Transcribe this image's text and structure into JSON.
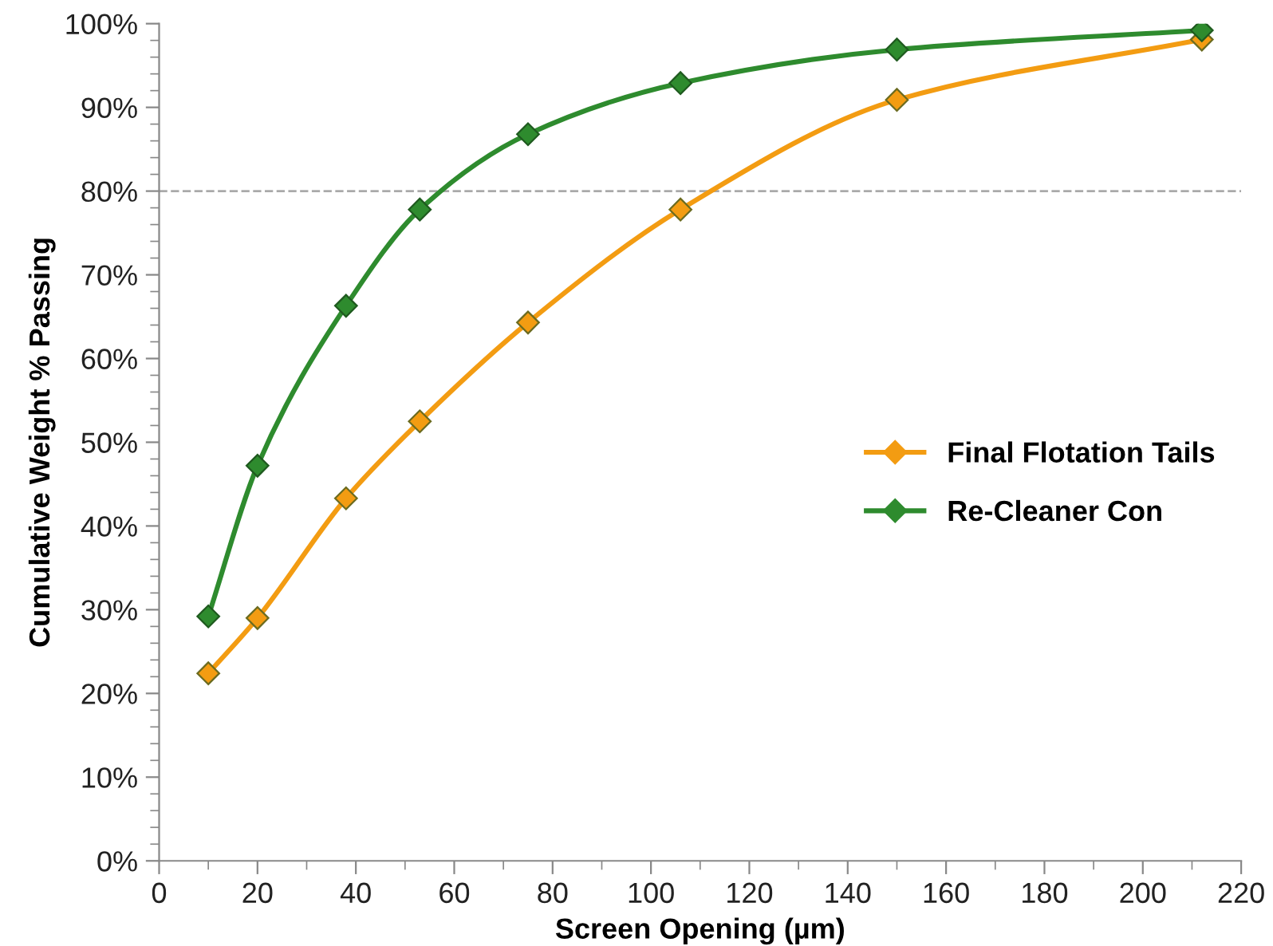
{
  "chart_data": {
    "type": "line",
    "xlabel": "Screen Opening (µm)",
    "ylabel": "Cumulative Weight % Passing",
    "series": [
      {
        "name": "Final Flotation Tails",
        "color": "#f39c12",
        "x": [
          10,
          20,
          38,
          53,
          75,
          106,
          150,
          212
        ],
        "values": [
          22.4,
          29.0,
          43.3,
          52.5,
          64.3,
          77.8,
          90.9,
          98.1
        ]
      },
      {
        "name": "Re-Cleaner Con",
        "color": "#2e8b2e",
        "x": [
          10,
          20,
          38,
          53,
          75,
          106,
          150,
          212
        ],
        "values": [
          29.2,
          47.2,
          66.3,
          77.8,
          86.8,
          92.9,
          96.9,
          99.2
        ]
      }
    ],
    "xlim": [
      0,
      220
    ],
    "xticks": [
      0,
      20,
      40,
      60,
      80,
      100,
      120,
      140,
      160,
      180,
      200,
      220
    ],
    "ylim": [
      0,
      100
    ],
    "yticks": [
      {
        "value": 0,
        "label": "0%"
      },
      {
        "value": 10,
        "label": "10%"
      },
      {
        "value": 20,
        "label": "20%"
      },
      {
        "value": 30,
        "label": "30%"
      },
      {
        "value": 40,
        "label": "40%"
      },
      {
        "value": 50,
        "label": "50%"
      },
      {
        "value": 60,
        "label": "60%"
      },
      {
        "value": 70,
        "label": "70%"
      },
      {
        "value": 80,
        "label": "80%"
      },
      {
        "value": 90,
        "label": "90%"
      },
      {
        "value": 100,
        "label": "100%"
      }
    ],
    "ref_lines": [
      {
        "axis": "y",
        "value": 80,
        "color": "#aaaaaa",
        "line_style": "dashed"
      }
    ],
    "marker": "diamond",
    "line_style": "solid",
    "grid": false,
    "legend": "right"
  }
}
